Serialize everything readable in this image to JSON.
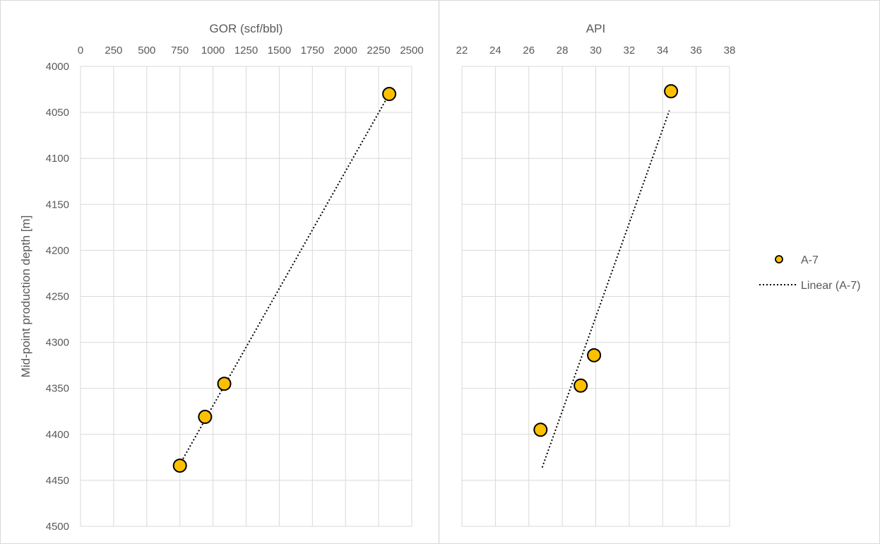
{
  "chart_data": [
    {
      "type": "scatter",
      "title": "",
      "xlabel": "GOR (scf/bbl)",
      "ylabel": "Mid-point production depth [m]",
      "xlim": [
        0,
        2500
      ],
      "ylim": [
        4000,
        4500
      ],
      "y_inverted": true,
      "x_axis_position": "top",
      "x_ticks": [
        0,
        250,
        500,
        750,
        1000,
        1250,
        1500,
        1750,
        2000,
        2250,
        2500
      ],
      "y_ticks": [
        4000,
        4050,
        4100,
        4150,
        4200,
        4250,
        4300,
        4350,
        4400,
        4450,
        4500
      ],
      "grid": true,
      "series": [
        {
          "name": "A-7",
          "color": "#FFC000",
          "points": [
            {
              "x": 2330,
              "y": 4030
            },
            {
              "x": 1085,
              "y": 4345
            },
            {
              "x": 940,
              "y": 4381
            },
            {
              "x": 750,
              "y": 4434
            }
          ]
        }
      ],
      "trendline": {
        "name": "Linear (A-7)",
        "style": "dotted",
        "from": {
          "x": 760,
          "y": 4430
        },
        "to": {
          "x": 2330,
          "y": 4030
        }
      }
    },
    {
      "type": "scatter",
      "title": "",
      "xlabel": "API",
      "ylabel": "",
      "xlim": [
        22,
        38
      ],
      "ylim": [
        4000,
        4500
      ],
      "y_inverted": true,
      "x_axis_position": "top",
      "x_ticks": [
        22,
        24,
        26,
        28,
        30,
        32,
        34,
        36,
        38
      ],
      "y_ticks": [
        4000,
        4050,
        4100,
        4150,
        4200,
        4250,
        4300,
        4350,
        4400,
        4450,
        4500
      ],
      "show_y_tick_labels": false,
      "grid": true,
      "series": [
        {
          "name": "A-7",
          "color": "#FFC000",
          "points": [
            {
              "x": 34.5,
              "y": 4027
            },
            {
              "x": 29.9,
              "y": 4314
            },
            {
              "x": 29.1,
              "y": 4347
            },
            {
              "x": 26.7,
              "y": 4395
            }
          ]
        }
      ],
      "trendline": {
        "name": "Linear (A-7)",
        "style": "dotted",
        "from": {
          "x": 26.8,
          "y": 4436
        },
        "to": {
          "x": 34.4,
          "y": 4048
        }
      }
    }
  ],
  "legend": {
    "placement": "right",
    "items": [
      {
        "label": "A-7",
        "kind": "marker",
        "color": "#FFC000"
      },
      {
        "label": "Linear (A-7)",
        "kind": "dotted-line"
      }
    ]
  }
}
